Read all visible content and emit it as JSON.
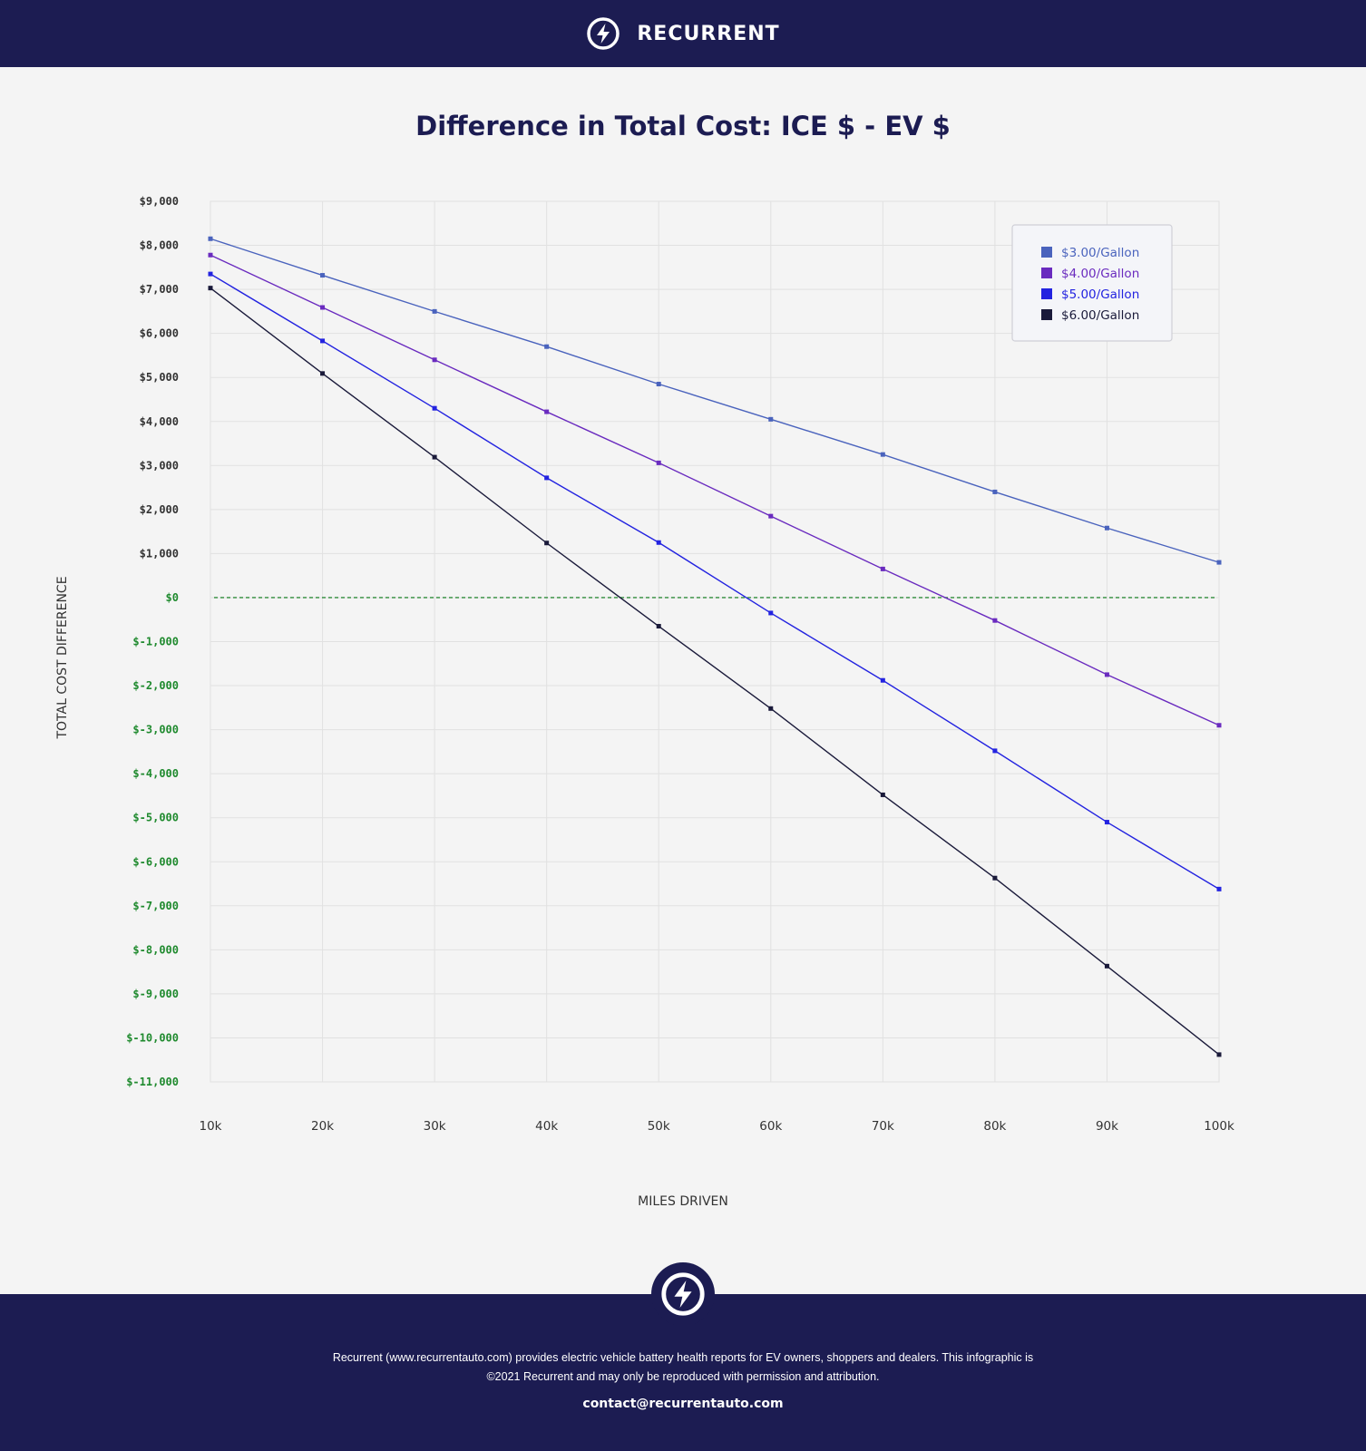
{
  "header": {
    "brand": "RECURRENT",
    "logo_icon": "bolt-circle-icon"
  },
  "chart_data": {
    "type": "line",
    "title": "Difference in Total Cost: ICE $ - EV $",
    "xlabel": "MILES DRIVEN",
    "ylabel": "TOTAL COST DIFFERENCE",
    "x": [
      10000,
      20000,
      30000,
      40000,
      50000,
      60000,
      70000,
      80000,
      90000,
      100000
    ],
    "xtick_labels": [
      "10k",
      "20k",
      "30k",
      "40k",
      "50k",
      "60k",
      "70k",
      "80k",
      "90k",
      "100k"
    ],
    "ylim": [
      -11000,
      9000
    ],
    "yticks": [
      9000,
      8000,
      7000,
      6000,
      5000,
      4000,
      3000,
      2000,
      1000,
      0,
      -1000,
      -2000,
      -3000,
      -4000,
      -5000,
      -6000,
      -7000,
      -8000,
      -9000,
      -10000,
      -11000
    ],
    "ytick_labels": [
      "$9,000",
      "$8,000",
      "$7,000",
      "$6,000",
      "$5,000",
      "$4,000",
      "$3,000",
      "$2,000",
      "$1,000",
      "$0",
      "$-1,000",
      "$-2,000",
      "$-3,000",
      "$-4,000",
      "$-5,000",
      "$-6,000",
      "$-7,000",
      "$-8,000",
      "$-9,000",
      "$-10,000",
      "$-11,000"
    ],
    "zero_line": true,
    "grid": true,
    "legend_position": "top-right",
    "series": [
      {
        "name": "$3.00/Gallon",
        "color": "#4a63bd",
        "values": [
          8150,
          7320,
          6500,
          5700,
          4850,
          4050,
          3250,
          2400,
          1580,
          800
        ]
      },
      {
        "name": "$4.00/Gallon",
        "color": "#6a2bbf",
        "values": [
          7780,
          6590,
          5400,
          4220,
          3060,
          1850,
          650,
          -520,
          -1750,
          -2900
        ]
      },
      {
        "name": "$5.00/Gallon",
        "color": "#2323e0",
        "values": [
          7350,
          5830,
          4300,
          2720,
          1250,
          -350,
          -1880,
          -3480,
          -5100,
          -6620
        ]
      },
      {
        "name": "$6.00/Gallon",
        "color": "#1a1a3a",
        "values": [
          7030,
          5090,
          3190,
          1240,
          -650,
          -2520,
          -4480,
          -6370,
          -8370,
          -10380
        ]
      }
    ]
  },
  "colors": {
    "positive_tick": "#333333",
    "negative_tick": "#1f8a2e",
    "zero_line": "#2e8b3a"
  },
  "footer": {
    "logo_icon": "bolt-circle-icon",
    "line1": "Recurrent (www.recurrentauto.com) provides electric vehicle battery health reports for EV owners, shoppers and dealers. This infographic is",
    "line2": "©2021 Recurrent and may only be reproduced with permission and attribution.",
    "contact": "contact@recurrentauto.com"
  }
}
